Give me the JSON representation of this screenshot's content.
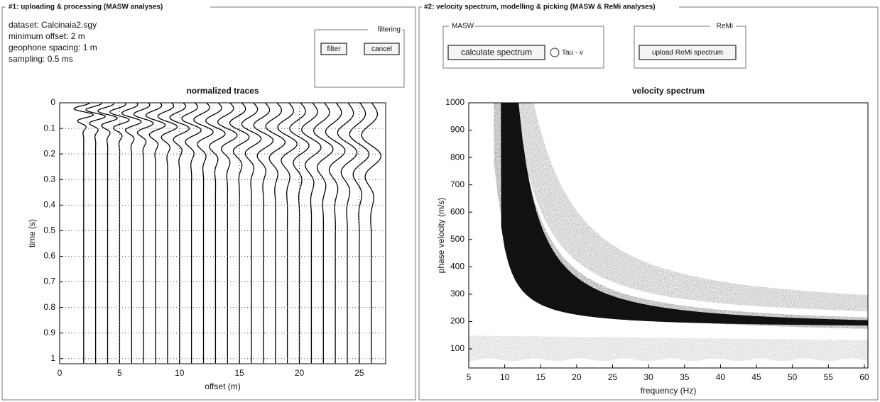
{
  "panel1": {
    "title": "#1: uploading & processing (MASW analyses)",
    "info": [
      "dataset: Calcinaia2.sgy",
      "minimum offset: 2 m",
      "geophone spacing: 1 m",
      "sampling: 0.5 ms"
    ],
    "filtering": {
      "title": "filtering",
      "buttons": [
        "filter",
        "cancel"
      ]
    },
    "plot": {
      "title": "normalized traces",
      "xlabel": "offset (m)",
      "ylabel": "time (s)",
      "xlim": [
        0,
        27.2
      ],
      "ylim": [
        0,
        1.02
      ],
      "xticks": [
        0,
        5,
        10,
        15,
        20,
        25
      ],
      "yticks": [
        0,
        0.1,
        0.2,
        0.3,
        0.4,
        0.5,
        0.6,
        0.7,
        0.8,
        0.9,
        1
      ],
      "grid": true
    }
  },
  "panel2": {
    "title": "#2: velocity spectrum, modelling & picking (MASW & ReMi analyses)",
    "masw": {
      "title": "MASW",
      "button": "calculate spectrum",
      "option": "Tau - v"
    },
    "remi": {
      "title": "ReMi",
      "button": "upload ReMi spectrum"
    },
    "plot": {
      "title": "velocity spectrum",
      "xlabel": "frequency (Hz)",
      "ylabel": "phase velocity (m/s)",
      "xlim": [
        5,
        60.5
      ],
      "ylim": [
        30,
        1000
      ],
      "xticks": [
        5,
        10,
        15,
        20,
        25,
        30,
        35,
        40,
        45,
        50,
        55,
        60
      ],
      "yticks": [
        100,
        200,
        300,
        400,
        500,
        600,
        700,
        800,
        900,
        1000
      ],
      "grid": false
    }
  }
}
